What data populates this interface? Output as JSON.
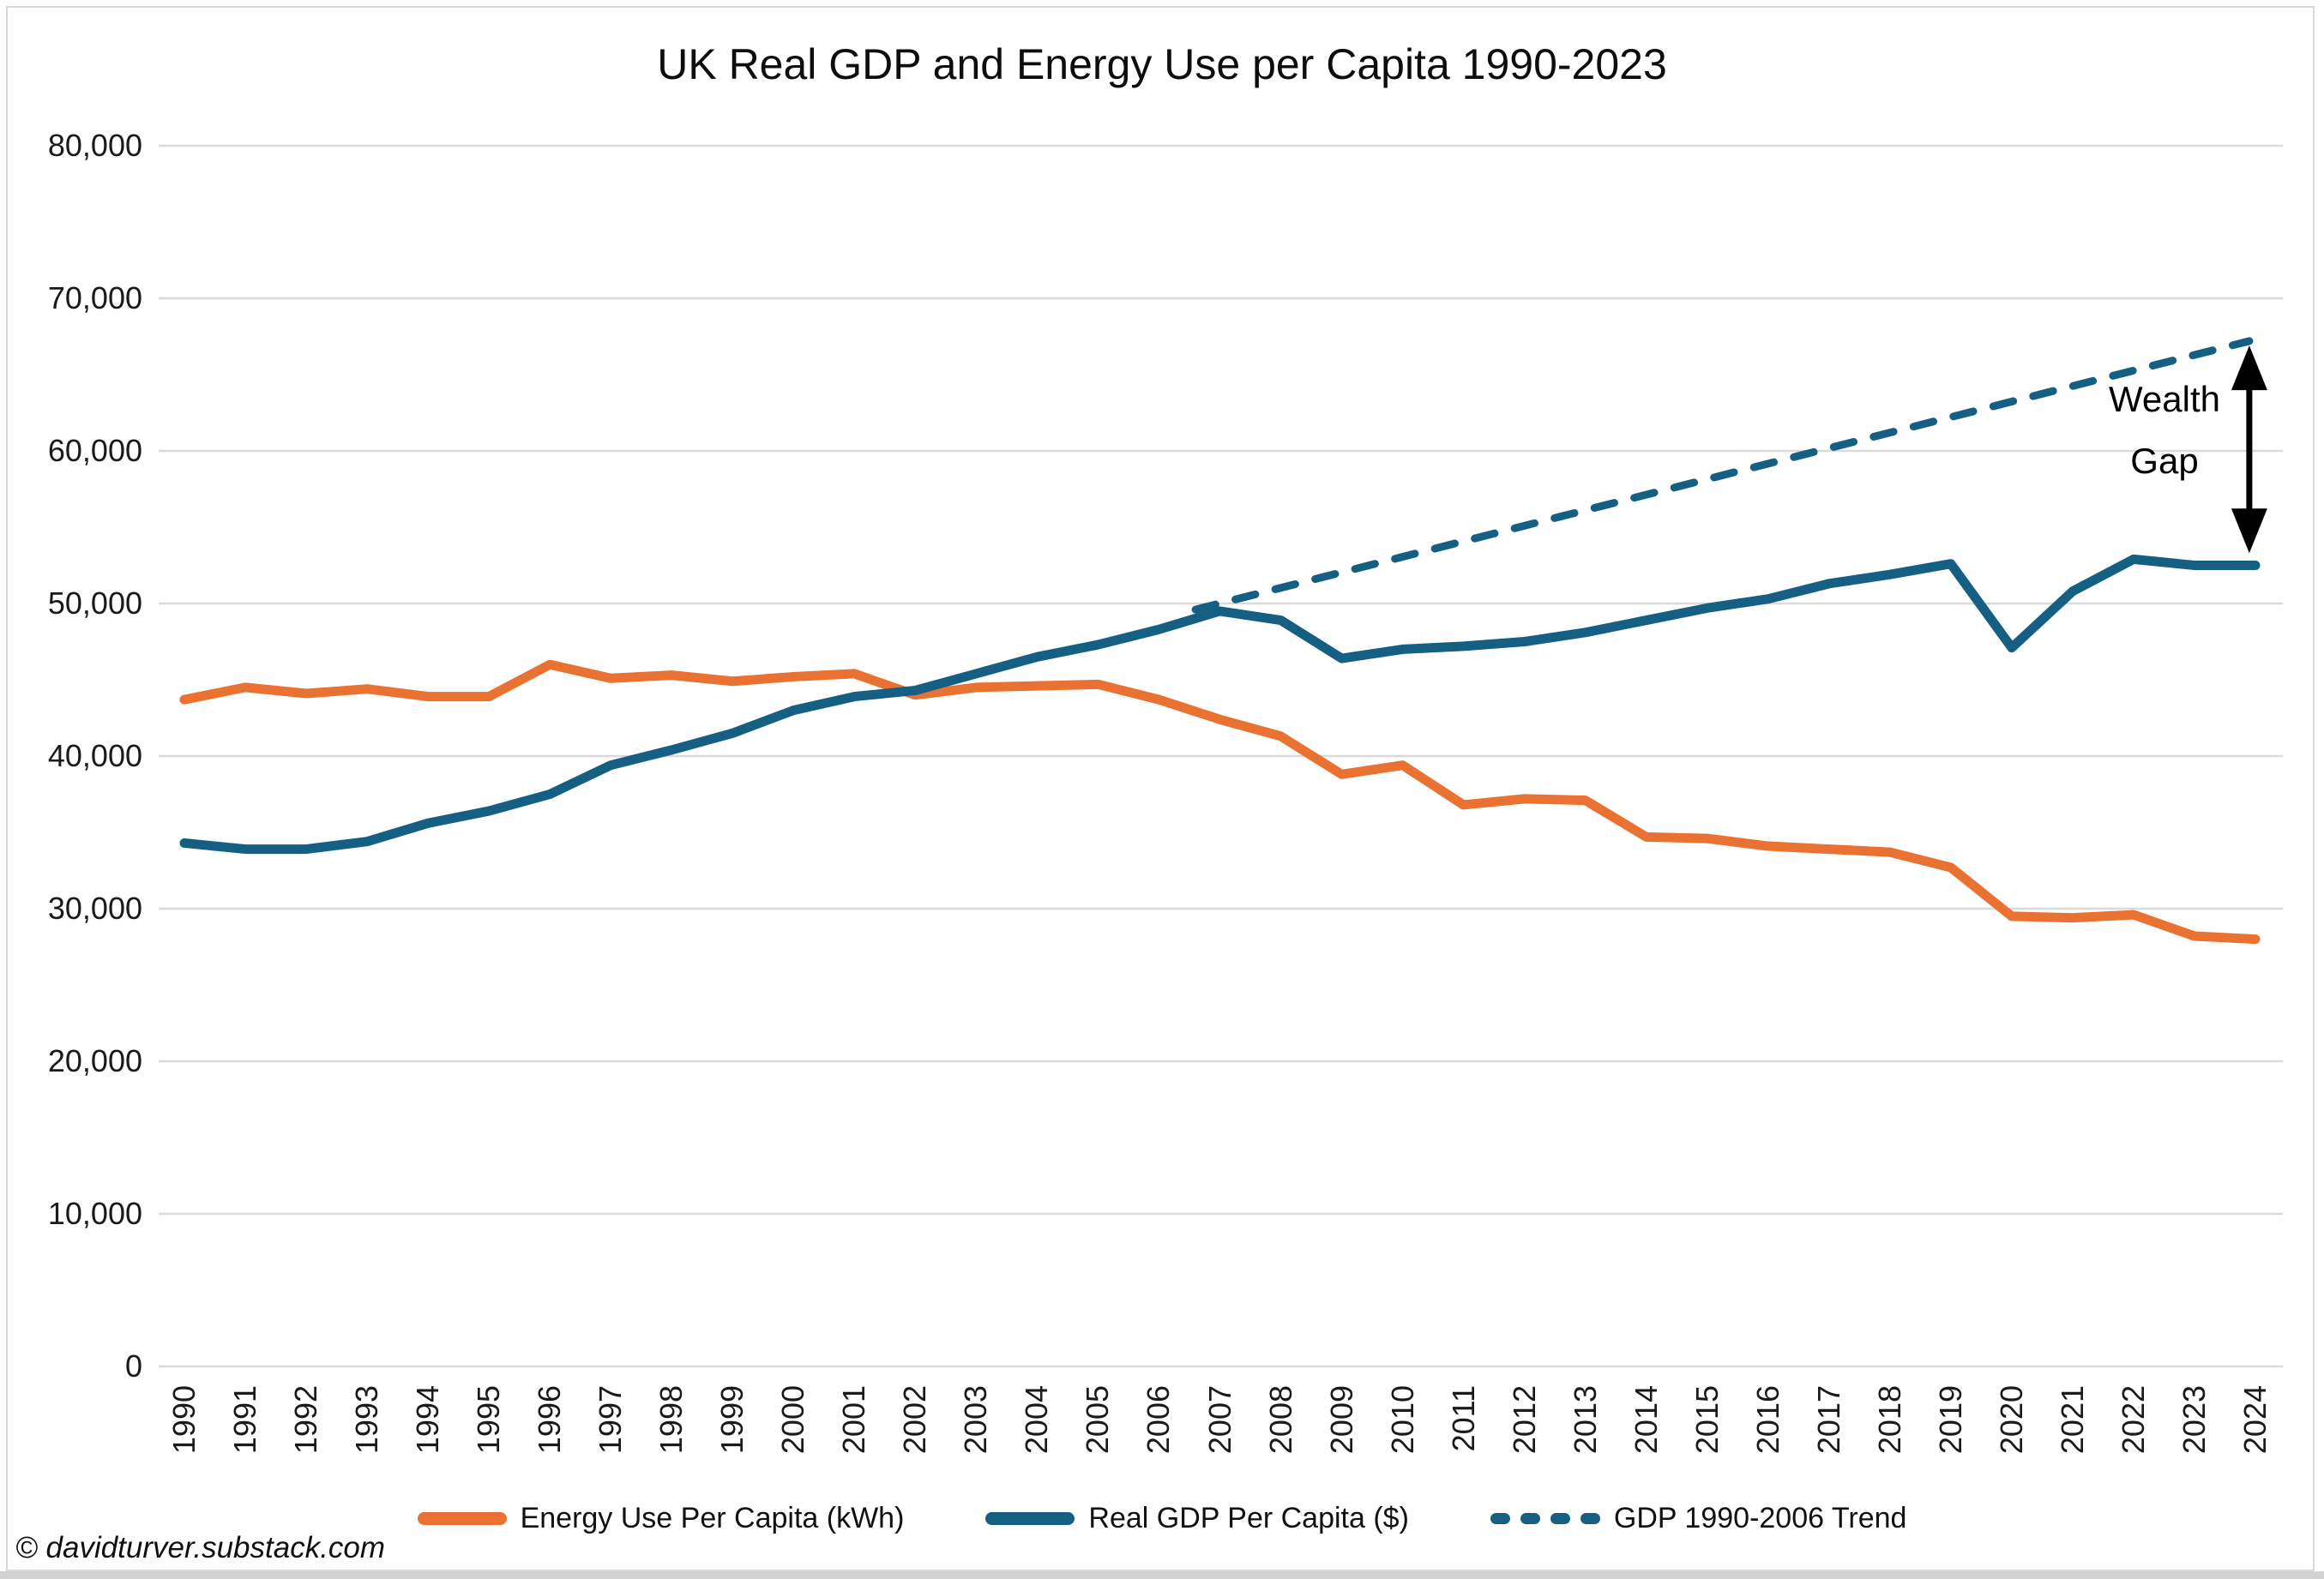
{
  "title": "UK Real GDP and Energy Use per Capita 1990-2023",
  "footer": "© davidturver.substack.com",
  "annotation": {
    "line1": "Wealth",
    "line2": "Gap"
  },
  "colors": {
    "energy": "#E97132",
    "gdp": "#156082",
    "grid": "#D9D9D9",
    "arrow": "#000000",
    "window_frame": "#D9D9D9",
    "window_bottom_bar": "#D2D2D2"
  },
  "legend": [
    {
      "label": "Energy Use Per Capita (kWh)",
      "color": "#E97132",
      "style": "solid"
    },
    {
      "label": "Real GDP Per Capita ($)",
      "color": "#156082",
      "style": "solid"
    },
    {
      "label": "GDP 1990-2006 Trend",
      "color": "#156082",
      "style": "dashed"
    }
  ],
  "chart_data": {
    "type": "line",
    "title": "UK Real GDP and Energy Use per Capita 1990-2023",
    "xlabel": "",
    "ylabel": "",
    "grid": true,
    "grid_color": "#D9D9D9",
    "legend_position": "bottom",
    "ylim": [
      0,
      80000
    ],
    "yticks": [
      0,
      10000,
      20000,
      30000,
      40000,
      50000,
      60000,
      70000,
      80000
    ],
    "ytick_labels": [
      "0",
      "10,000",
      "20,000",
      "30,000",
      "40,000",
      "50,000",
      "60,000",
      "70,000",
      "80,000"
    ],
    "x": [
      1990,
      1991,
      1992,
      1993,
      1994,
      1995,
      1996,
      1997,
      1998,
      1999,
      2000,
      2001,
      2002,
      2003,
      2004,
      2005,
      2006,
      2007,
      2008,
      2009,
      2010,
      2011,
      2012,
      2013,
      2014,
      2015,
      2016,
      2017,
      2018,
      2019,
      2020,
      2021,
      2022,
      2023,
      2024
    ],
    "series": [
      {
        "name": "Energy Use Per Capita (kWh)",
        "color": "#E97132",
        "style": "solid",
        "values": [
          43700,
          44500,
          44100,
          44400,
          43900,
          43900,
          46000,
          45100,
          45300,
          44900,
          45200,
          45400,
          44000,
          44500,
          44600,
          44700,
          43700,
          42400,
          41300,
          38800,
          39400,
          36800,
          37200,
          37100,
          34700,
          34600,
          34100,
          33900,
          33700,
          32700,
          29500,
          29400,
          29600,
          28200,
          28000
        ]
      },
      {
        "name": "Real GDP Per Capita ($)",
        "color": "#156082",
        "style": "solid",
        "values": [
          34300,
          33900,
          33900,
          34400,
          35600,
          36400,
          37500,
          39400,
          40400,
          41500,
          43000,
          43900,
          44300,
          45400,
          46500,
          47300,
          48300,
          49500,
          48900,
          46400,
          47000,
          47200,
          47500,
          48100,
          48900,
          49700,
          50300,
          51300,
          51900,
          52600,
          47100,
          50800,
          52900,
          52500,
          52500
        ]
      },
      {
        "name": "GDP 1990-2006 Trend",
        "color": "#156082",
        "style": "dashed",
        "trend": {
          "year_start": 2006.6,
          "value_start": 49600,
          "year_end": 2023.9,
          "value_end": 67200
        }
      }
    ],
    "annotation": {
      "text": [
        "Wealth",
        "Gap"
      ],
      "at_year": 2023.9,
      "arrow_top_value": 66900,
      "arrow_bottom_value": 53300
    }
  }
}
